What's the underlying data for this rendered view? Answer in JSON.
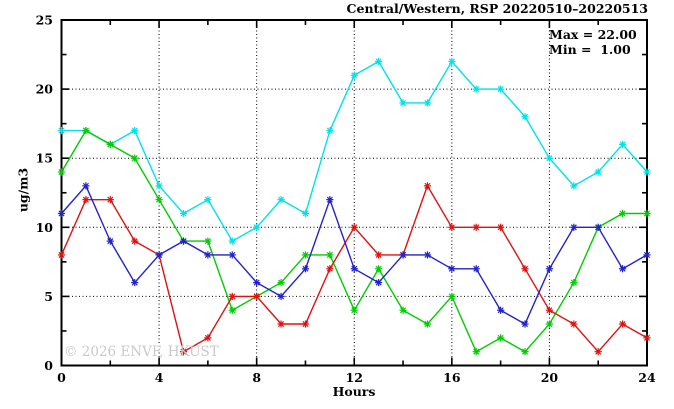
{
  "header": {
    "title": "Central/Western, RSP 20220510–20220513"
  },
  "annotation": {
    "max_label": "Max = 22.00",
    "min_label": "Min =  1.00"
  },
  "watermark": "© 2026 ENVF, HKUST",
  "chart_data": {
    "type": "line",
    "title": "Central/Western, RSP 20220510–20220513",
    "xlabel": "Hours",
    "ylabel": "ug/m3",
    "xlim": [
      0,
      24
    ],
    "ylim": [
      0,
      25
    ],
    "grid": "dotted",
    "legend_position": "none",
    "marker": "asterisk",
    "xticks_major": [
      0,
      4,
      8,
      12,
      16,
      20,
      24
    ],
    "xticks_minor": [
      2,
      6,
      10,
      14,
      18,
      22
    ],
    "yticks_major": [
      0,
      5,
      10,
      15,
      20,
      25
    ],
    "yticks_minor": [
      2.5,
      7.5,
      12.5,
      17.5,
      22.5
    ],
    "gridlines_x": [
      4,
      8,
      12,
      16,
      20
    ],
    "gridlines_y": [
      5,
      10,
      15,
      20
    ],
    "x": [
      0,
      1,
      2,
      3,
      4,
      5,
      6,
      7,
      8,
      9,
      10,
      11,
      12,
      13,
      14,
      15,
      16,
      17,
      18,
      19,
      20,
      21,
      22,
      23,
      24
    ],
    "series": [
      {
        "name": "cyan-series",
        "color": "#00e1ea",
        "values": [
          17,
          17,
          16,
          17,
          13,
          11,
          12,
          9,
          10,
          12,
          11,
          17,
          21,
          22,
          19,
          19,
          22,
          20,
          20,
          18,
          15,
          13,
          14,
          16,
          14
        ]
      },
      {
        "name": "green-series",
        "color": "#00cc00",
        "values": [
          14,
          17,
          16,
          15,
          12,
          9,
          9,
          4,
          5,
          6,
          8,
          8,
          4,
          7,
          4,
          3,
          5,
          1,
          2,
          1,
          3,
          6,
          10,
          11,
          11
        ]
      },
      {
        "name": "red-series",
        "color": "#e01111",
        "values": [
          8,
          12,
          12,
          9,
          8,
          1,
          2,
          5,
          5,
          3,
          3,
          7,
          10,
          8,
          8,
          13,
          10,
          10,
          10,
          7,
          4,
          3,
          1,
          3,
          2
        ]
      },
      {
        "name": "blue-series",
        "color": "#2222cc",
        "values": [
          11,
          13,
          9,
          6,
          8,
          9,
          8,
          8,
          6,
          5,
          7,
          12,
          7,
          6,
          8,
          8,
          7,
          7,
          4,
          3,
          7,
          10,
          10,
          7,
          8
        ]
      }
    ],
    "stats": {
      "max": 22.0,
      "min": 1.0
    }
  }
}
